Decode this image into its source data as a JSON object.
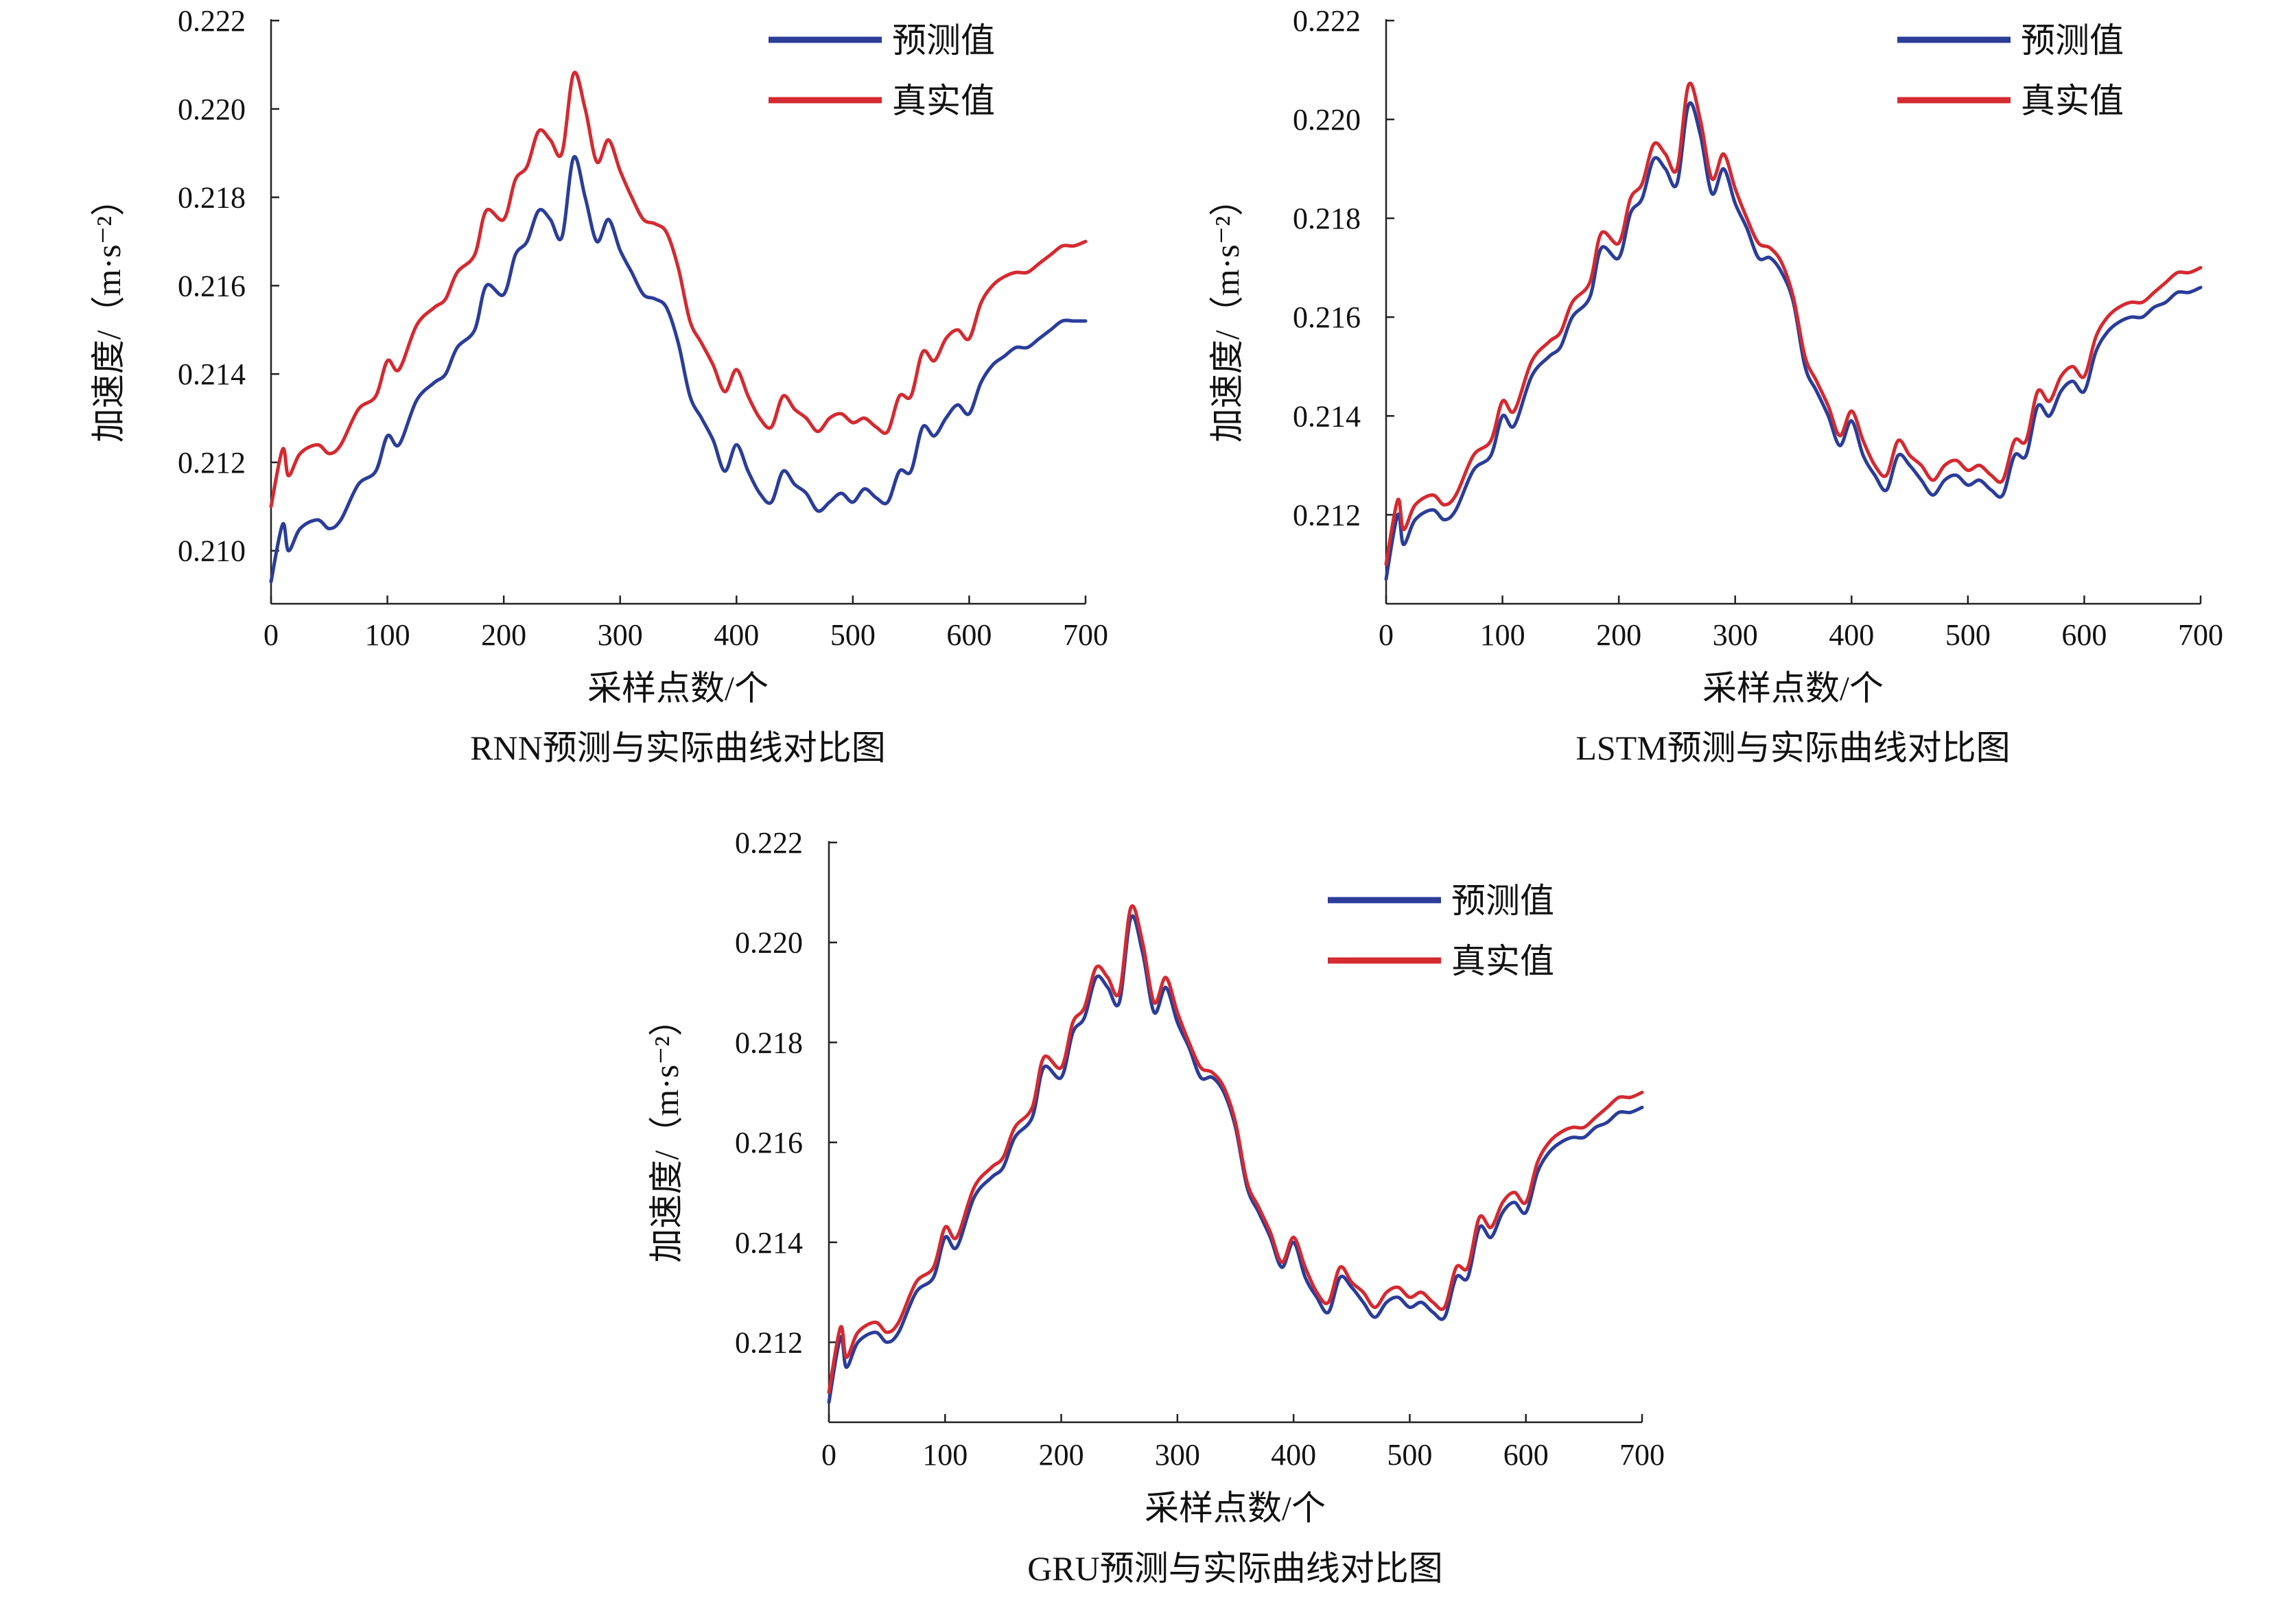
{
  "colors": {
    "predicted": "#2b3d99",
    "actual": "#d42a30",
    "axis": "#222222"
  },
  "chart_data": [
    {
      "type": "line",
      "title": "RNN预测与实际曲线对比图",
      "xlabel": "采样点数/个",
      "ylabel": "加速度/（m·s⁻²）",
      "xlim": [
        0,
        700
      ],
      "ylim": [
        0.2088,
        0.222
      ],
      "xticks": [
        "0",
        "100",
        "200",
        "300",
        "400",
        "500",
        "600",
        "700"
      ],
      "yticks": [
        "0.210",
        "0.212",
        "0.214",
        "0.216",
        "0.218",
        "0.220",
        "0.222"
      ],
      "grid": false,
      "legend_position": "top-right",
      "series": [
        {
          "name": "预测值",
          "color": "#2b3d99",
          "x": [
            0,
            10,
            15,
            25,
            40,
            50,
            60,
            75,
            90,
            100,
            110,
            125,
            140,
            150,
            160,
            175,
            185,
            200,
            210,
            220,
            230,
            240,
            250,
            260,
            270,
            280,
            290,
            300,
            310,
            320,
            330,
            340,
            350,
            360,
            370,
            380,
            390,
            400,
            410,
            420,
            430,
            440,
            450,
            460,
            470,
            480,
            490,
            500,
            510,
            520,
            530,
            540,
            550,
            560,
            570,
            580,
            590,
            600,
            610,
            620,
            630,
            640,
            650,
            660,
            670,
            680,
            690,
            700
          ],
          "y": [
            0.2093,
            0.2106,
            0.21,
            0.2105,
            0.2107,
            0.2105,
            0.2107,
            0.2115,
            0.2118,
            0.2126,
            0.2124,
            0.2134,
            0.2138,
            0.214,
            0.2146,
            0.215,
            0.216,
            0.2158,
            0.2167,
            0.217,
            0.2177,
            0.2175,
            0.2171,
            0.2189,
            0.218,
            0.217,
            0.2175,
            0.2168,
            0.2163,
            0.2158,
            0.2157,
            0.2155,
            0.2147,
            0.2135,
            0.213,
            0.2125,
            0.2118,
            0.2124,
            0.2118,
            0.2113,
            0.2111,
            0.2118,
            0.2115,
            0.2113,
            0.2109,
            0.2111,
            0.2113,
            0.2111,
            0.2114,
            0.2112,
            0.2111,
            0.2118,
            0.2118,
            0.2128,
            0.2126,
            0.213,
            0.2133,
            0.2131,
            0.2138,
            0.2142,
            0.2144,
            0.2146,
            0.2146,
            0.2148,
            0.215,
            0.2152,
            0.2152,
            0.2152
          ]
        },
        {
          "name": "真实值",
          "color": "#d42a30",
          "x": [
            0,
            10,
            15,
            25,
            40,
            50,
            60,
            75,
            90,
            100,
            110,
            125,
            140,
            150,
            160,
            175,
            185,
            200,
            210,
            220,
            230,
            240,
            250,
            260,
            270,
            280,
            290,
            300,
            310,
            320,
            330,
            340,
            350,
            360,
            370,
            380,
            390,
            400,
            410,
            420,
            430,
            440,
            450,
            460,
            470,
            480,
            490,
            500,
            510,
            520,
            530,
            540,
            550,
            560,
            570,
            580,
            590,
            600,
            610,
            620,
            630,
            640,
            650,
            660,
            670,
            680,
            690,
            700
          ],
          "y": [
            0.211,
            0.2123,
            0.2117,
            0.2122,
            0.2124,
            0.2122,
            0.2124,
            0.2132,
            0.2135,
            0.2143,
            0.2141,
            0.2151,
            0.2155,
            0.2157,
            0.2163,
            0.2167,
            0.2177,
            0.2175,
            0.2184,
            0.2187,
            0.2195,
            0.2193,
            0.219,
            0.2208,
            0.22,
            0.2188,
            0.2193,
            0.2186,
            0.218,
            0.2175,
            0.2174,
            0.2172,
            0.2164,
            0.2152,
            0.2147,
            0.2142,
            0.2136,
            0.2141,
            0.2135,
            0.213,
            0.2128,
            0.2135,
            0.2132,
            0.213,
            0.2127,
            0.213,
            0.2131,
            0.2129,
            0.213,
            0.2128,
            0.2127,
            0.2135,
            0.2135,
            0.2145,
            0.2143,
            0.2148,
            0.215,
            0.2148,
            0.2156,
            0.216,
            0.2162,
            0.2163,
            0.2163,
            0.2165,
            0.2167,
            0.2169,
            0.2169,
            0.217
          ]
        }
      ]
    },
    {
      "type": "line",
      "title": "LSTM预测与实际曲线对比图",
      "xlabel": "采样点数/个",
      "ylabel": "加速度/（m·s⁻²）",
      "xlim": [
        0,
        700
      ],
      "ylim": [
        0.2102,
        0.222
      ],
      "xticks": [
        "0",
        "100",
        "200",
        "300",
        "400",
        "500",
        "600",
        "700"
      ],
      "yticks": [
        "0.212",
        "0.214",
        "0.216",
        "0.218",
        "0.220",
        "0.222"
      ],
      "grid": false,
      "legend_position": "top-right",
      "series": [
        {
          "name": "预测值",
          "color": "#2b3d99",
          "x": [
            0,
            10,
            15,
            25,
            40,
            50,
            60,
            75,
            90,
            100,
            110,
            125,
            140,
            150,
            160,
            175,
            185,
            200,
            210,
            220,
            230,
            240,
            250,
            260,
            270,
            280,
            290,
            300,
            310,
            320,
            330,
            340,
            350,
            360,
            370,
            380,
            390,
            400,
            410,
            420,
            430,
            440,
            450,
            460,
            470,
            480,
            490,
            500,
            510,
            520,
            530,
            540,
            550,
            560,
            570,
            580,
            590,
            600,
            610,
            620,
            630,
            640,
            650,
            660,
            670,
            680,
            690,
            700
          ],
          "y": [
            0.2107,
            0.212,
            0.2114,
            0.2119,
            0.2121,
            0.2119,
            0.2121,
            0.2129,
            0.2132,
            0.214,
            0.2138,
            0.2148,
            0.2152,
            0.2154,
            0.216,
            0.2164,
            0.2174,
            0.2172,
            0.2181,
            0.2184,
            0.2192,
            0.219,
            0.2187,
            0.2203,
            0.2197,
            0.2185,
            0.219,
            0.2183,
            0.2178,
            0.2172,
            0.2172,
            0.2169,
            0.2163,
            0.215,
            0.2145,
            0.214,
            0.2134,
            0.2139,
            0.2132,
            0.2128,
            0.2125,
            0.2132,
            0.213,
            0.2127,
            0.2124,
            0.2127,
            0.2128,
            0.2126,
            0.2127,
            0.2125,
            0.2124,
            0.2132,
            0.2132,
            0.2142,
            0.214,
            0.2145,
            0.2147,
            0.2145,
            0.2153,
            0.2157,
            0.2159,
            0.216,
            0.216,
            0.2162,
            0.2163,
            0.2165,
            0.2165,
            0.2166
          ]
        },
        {
          "name": "真实值",
          "color": "#d42a30",
          "x": [
            0,
            10,
            15,
            25,
            40,
            50,
            60,
            75,
            90,
            100,
            110,
            125,
            140,
            150,
            160,
            175,
            185,
            200,
            210,
            220,
            230,
            240,
            250,
            260,
            270,
            280,
            290,
            300,
            310,
            320,
            330,
            340,
            350,
            360,
            370,
            380,
            390,
            400,
            410,
            420,
            430,
            440,
            450,
            460,
            470,
            480,
            490,
            500,
            510,
            520,
            530,
            540,
            550,
            560,
            570,
            580,
            590,
            600,
            610,
            620,
            630,
            640,
            650,
            660,
            670,
            680,
            690,
            700
          ],
          "y": [
            0.211,
            0.2123,
            0.2117,
            0.2122,
            0.2124,
            0.2122,
            0.2124,
            0.2132,
            0.2135,
            0.2143,
            0.2141,
            0.2151,
            0.2155,
            0.2157,
            0.2163,
            0.2167,
            0.2177,
            0.2175,
            0.2184,
            0.2187,
            0.2195,
            0.2193,
            0.219,
            0.2207,
            0.22,
            0.2188,
            0.2193,
            0.2186,
            0.218,
            0.2175,
            0.2174,
            0.2171,
            0.2164,
            0.2152,
            0.2147,
            0.2142,
            0.2136,
            0.2141,
            0.2135,
            0.213,
            0.2128,
            0.2135,
            0.2132,
            0.213,
            0.2127,
            0.213,
            0.2131,
            0.2129,
            0.213,
            0.2128,
            0.2127,
            0.2135,
            0.2135,
            0.2145,
            0.2143,
            0.2148,
            0.215,
            0.2148,
            0.2156,
            0.216,
            0.2162,
            0.2163,
            0.2163,
            0.2165,
            0.2167,
            0.2169,
            0.2169,
            0.217
          ]
        }
      ]
    },
    {
      "type": "line",
      "title": "GRU预测与实际曲线对比图",
      "xlabel": "采样点数/个",
      "ylabel": "加速度/（m·s⁻²）",
      "xlim": [
        0,
        700
      ],
      "ylim": [
        0.2104,
        0.222
      ],
      "xticks": [
        "0",
        "100",
        "200",
        "300",
        "400",
        "500",
        "600",
        "700"
      ],
      "yticks": [
        "0.212",
        "0.214",
        "0.216",
        "0.218",
        "0.220",
        "0.222"
      ],
      "grid": false,
      "legend_position": "top-right",
      "series": [
        {
          "name": "预测值",
          "color": "#2b3d99",
          "x": [
            0,
            10,
            15,
            25,
            40,
            50,
            60,
            75,
            90,
            100,
            110,
            125,
            140,
            150,
            160,
            175,
            185,
            200,
            210,
            220,
            230,
            240,
            250,
            260,
            270,
            280,
            290,
            300,
            310,
            320,
            330,
            340,
            350,
            360,
            370,
            380,
            390,
            400,
            410,
            420,
            430,
            440,
            450,
            460,
            470,
            480,
            490,
            500,
            510,
            520,
            530,
            540,
            550,
            560,
            570,
            580,
            590,
            600,
            610,
            620,
            630,
            640,
            650,
            660,
            670,
            680,
            690,
            700
          ],
          "y": [
            0.2108,
            0.2121,
            0.2115,
            0.212,
            0.2122,
            0.212,
            0.2122,
            0.213,
            0.2133,
            0.2141,
            0.2139,
            0.2149,
            0.2153,
            0.2155,
            0.2161,
            0.2165,
            0.2175,
            0.2173,
            0.2182,
            0.2185,
            0.2193,
            0.2191,
            0.2188,
            0.2205,
            0.2198,
            0.2186,
            0.2191,
            0.2184,
            0.2179,
            0.2173,
            0.2173,
            0.217,
            0.2163,
            0.2151,
            0.2146,
            0.2141,
            0.2135,
            0.214,
            0.2133,
            0.2129,
            0.2126,
            0.2133,
            0.2131,
            0.2128,
            0.2125,
            0.2128,
            0.2129,
            0.2127,
            0.2128,
            0.2126,
            0.2125,
            0.2133,
            0.2133,
            0.2143,
            0.2141,
            0.2146,
            0.2148,
            0.2146,
            0.2154,
            0.2158,
            0.216,
            0.2161,
            0.2161,
            0.2163,
            0.2164,
            0.2166,
            0.2166,
            0.2167
          ]
        },
        {
          "name": "真实值",
          "color": "#d42a30",
          "x": [
            0,
            10,
            15,
            25,
            40,
            50,
            60,
            75,
            90,
            100,
            110,
            125,
            140,
            150,
            160,
            175,
            185,
            200,
            210,
            220,
            230,
            240,
            250,
            260,
            270,
            280,
            290,
            300,
            310,
            320,
            330,
            340,
            350,
            360,
            370,
            380,
            390,
            400,
            410,
            420,
            430,
            440,
            450,
            460,
            470,
            480,
            490,
            500,
            510,
            520,
            530,
            540,
            550,
            560,
            570,
            580,
            590,
            600,
            610,
            620,
            630,
            640,
            650,
            660,
            670,
            680,
            690,
            700
          ],
          "y": [
            0.211,
            0.2123,
            0.2117,
            0.2122,
            0.2124,
            0.2122,
            0.2124,
            0.2132,
            0.2135,
            0.2143,
            0.2141,
            0.2151,
            0.2155,
            0.2157,
            0.2163,
            0.2167,
            0.2177,
            0.2175,
            0.2184,
            0.2187,
            0.2195,
            0.2193,
            0.219,
            0.2207,
            0.22,
            0.2188,
            0.2193,
            0.2186,
            0.218,
            0.2175,
            0.2174,
            0.2171,
            0.2164,
            0.2152,
            0.2147,
            0.2142,
            0.2136,
            0.2141,
            0.2135,
            0.213,
            0.2128,
            0.2135,
            0.2132,
            0.213,
            0.2127,
            0.213,
            0.2131,
            0.2129,
            0.213,
            0.2128,
            0.2127,
            0.2135,
            0.2135,
            0.2145,
            0.2143,
            0.2148,
            0.215,
            0.2148,
            0.2156,
            0.216,
            0.2162,
            0.2163,
            0.2163,
            0.2165,
            0.2167,
            0.2169,
            0.2169,
            0.217
          ]
        }
      ]
    }
  ]
}
